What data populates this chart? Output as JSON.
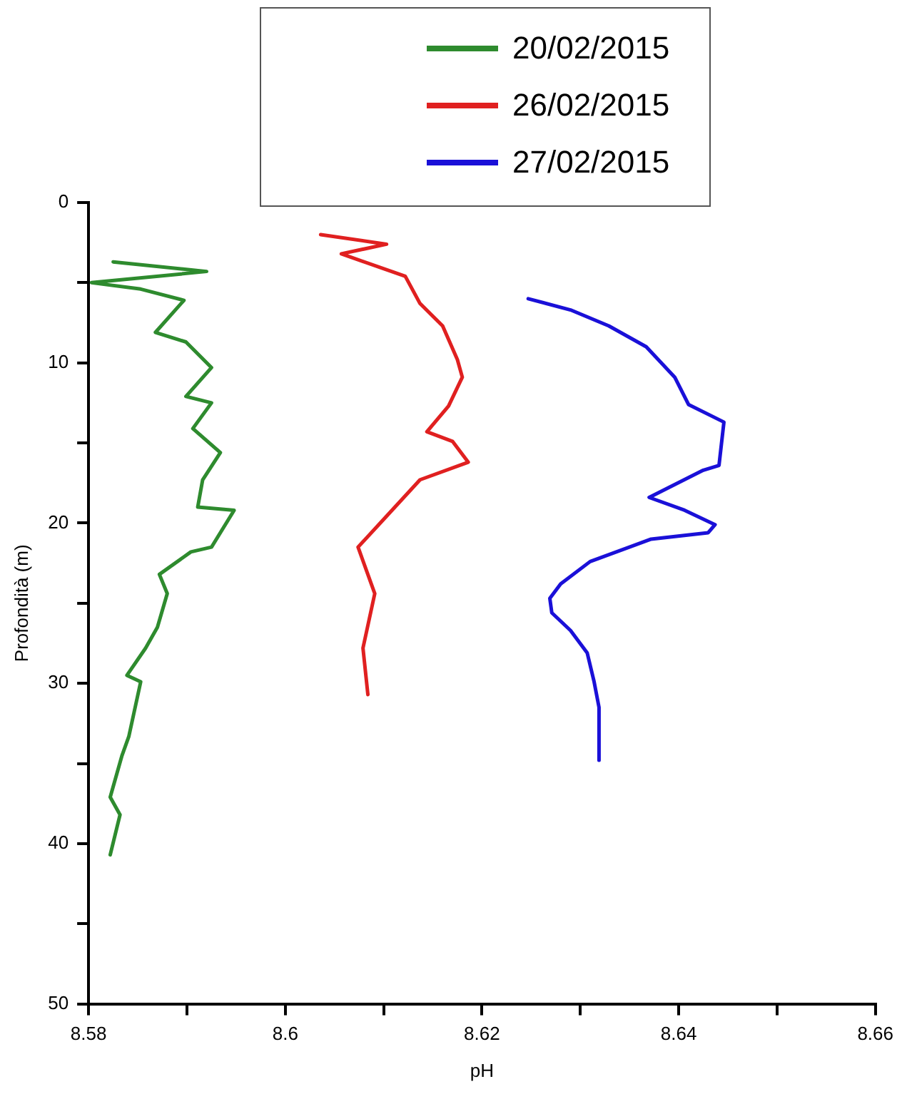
{
  "chart_data": {
    "type": "line",
    "xlabel": "pH",
    "ylabel": "Profondità (m)",
    "xlim": [
      8.58,
      8.66
    ],
    "ylim": [
      50,
      0
    ],
    "xticks": [
      8.58,
      {
        "value": 8.59,
        "label": null
      },
      8.6,
      {
        "value": 8.61,
        "label": null
      },
      8.62,
      {
        "value": 8.63,
        "label": null
      },
      8.64,
      {
        "value": 8.65,
        "label": null
      },
      8.66
    ],
    "yticks": [
      0,
      {
        "value": 5,
        "label": null
      },
      10,
      {
        "value": 15,
        "label": null
      },
      20,
      {
        "value": 25,
        "label": null
      },
      30,
      {
        "value": 35,
        "label": null
      },
      40,
      {
        "value": 45,
        "label": null
      },
      50
    ],
    "grid": false,
    "legend": "top",
    "marker": "none",
    "line_style": "solid",
    "series": [
      {
        "name": "20/02/2015",
        "color": "#2e8b2e",
        "x": [
          8.5825,
          8.592,
          8.5803,
          8.5853,
          8.5897,
          8.5868,
          8.5899,
          8.5925,
          8.5899,
          8.5925,
          8.5906,
          8.5934,
          8.5916,
          8.5911,
          8.5948,
          8.5925,
          8.5904,
          8.5872,
          8.588,
          8.587,
          8.5858,
          8.5839,
          8.5853,
          8.5841,
          8.5834,
          8.5822,
          8.5832,
          8.5822
        ],
        "values": [
          3.7,
          4.3,
          5.0,
          5.4,
          6.1,
          8.1,
          8.7,
          10.3,
          12.1,
          12.5,
          14.1,
          15.6,
          17.3,
          19.0,
          19.2,
          21.5,
          21.8,
          23.2,
          24.4,
          26.5,
          27.8,
          29.5,
          29.9,
          33.3,
          34.5,
          37.1,
          38.2,
          40.7
        ]
      },
      {
        "name": "26/02/2015",
        "color": "#e02020",
        "x": [
          8.6036,
          8.6103,
          8.6057,
          8.6122,
          8.6137,
          8.616,
          8.6175,
          8.618,
          8.6166,
          8.6144,
          8.617,
          8.6186,
          8.6137,
          8.6098,
          8.6074,
          8.6091,
          8.6079,
          8.6084
        ],
        "values": [
          2.0,
          2.6,
          3.2,
          4.6,
          6.3,
          7.7,
          9.8,
          10.9,
          12.7,
          14.3,
          14.9,
          16.2,
          17.3,
          19.9,
          21.5,
          24.4,
          27.8,
          30.7
        ]
      },
      {
        "name": "27/02/2015",
        "color": "#1a10d8",
        "x": [
          8.6247,
          8.629,
          8.6329,
          8.6367,
          8.6396,
          8.641,
          8.6446,
          8.6441,
          8.6425,
          8.637,
          8.6406,
          8.6437,
          8.643,
          8.6372,
          8.631,
          8.628,
          8.6269,
          8.6271,
          8.629,
          8.6307,
          8.6314,
          8.6319,
          8.6319
        ],
        "values": [
          6.0,
          6.7,
          7.7,
          9.0,
          10.9,
          12.6,
          13.7,
          16.4,
          16.7,
          18.4,
          19.2,
          20.1,
          20.6,
          21.0,
          22.4,
          23.8,
          24.7,
          25.6,
          26.7,
          28.1,
          29.9,
          31.5,
          34.8
        ]
      }
    ]
  }
}
